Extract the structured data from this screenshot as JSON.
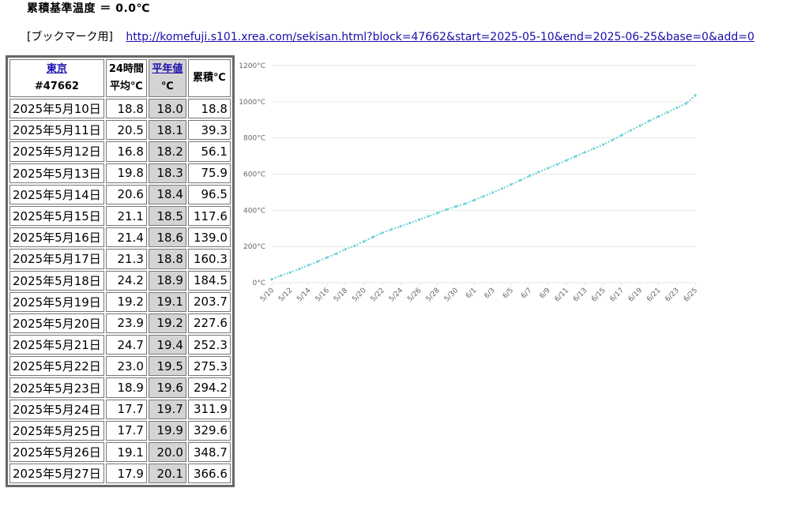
{
  "header": {
    "base_label": "累積基準温度 ＝ 0.0℃",
    "bookmark_label": "[ブックマーク用]",
    "bookmark_url": "http://komefuji.s101.xrea.com/sekisan.html?block=47662&start=2025-05-10&end=2025-06-25&base=0&add=0"
  },
  "table": {
    "station_name": "東京",
    "station_id": "#47662",
    "col_avg_line1": "24時間",
    "col_avg_line2": "平均℃",
    "col_normal_line1": "平年値",
    "col_normal_line2": "℃",
    "col_cum": "累積℃",
    "rows": [
      {
        "date": "2025年5月10日",
        "avg": "18.8",
        "normal": "18.0",
        "cum": "18.8"
      },
      {
        "date": "2025年5月11日",
        "avg": "20.5",
        "normal": "18.1",
        "cum": "39.3"
      },
      {
        "date": "2025年5月12日",
        "avg": "16.8",
        "normal": "18.2",
        "cum": "56.1"
      },
      {
        "date": "2025年5月13日",
        "avg": "19.8",
        "normal": "18.3",
        "cum": "75.9"
      },
      {
        "date": "2025年5月14日",
        "avg": "20.6",
        "normal": "18.4",
        "cum": "96.5"
      },
      {
        "date": "2025年5月15日",
        "avg": "21.1",
        "normal": "18.5",
        "cum": "117.6"
      },
      {
        "date": "2025年5月16日",
        "avg": "21.4",
        "normal": "18.6",
        "cum": "139.0"
      },
      {
        "date": "2025年5月17日",
        "avg": "21.3",
        "normal": "18.8",
        "cum": "160.3"
      },
      {
        "date": "2025年5月18日",
        "avg": "24.2",
        "normal": "18.9",
        "cum": "184.5"
      },
      {
        "date": "2025年5月19日",
        "avg": "19.2",
        "normal": "19.1",
        "cum": "203.7"
      },
      {
        "date": "2025年5月20日",
        "avg": "23.9",
        "normal": "19.2",
        "cum": "227.6"
      },
      {
        "date": "2025年5月21日",
        "avg": "24.7",
        "normal": "19.4",
        "cum": "252.3"
      },
      {
        "date": "2025年5月22日",
        "avg": "23.0",
        "normal": "19.5",
        "cum": "275.3"
      },
      {
        "date": "2025年5月23日",
        "avg": "18.9",
        "normal": "19.6",
        "cum": "294.2"
      },
      {
        "date": "2025年5月24日",
        "avg": "17.7",
        "normal": "19.7",
        "cum": "311.9"
      },
      {
        "date": "2025年5月25日",
        "avg": "17.7",
        "normal": "19.9",
        "cum": "329.6"
      },
      {
        "date": "2025年5月26日",
        "avg": "19.1",
        "normal": "20.0",
        "cum": "348.7"
      },
      {
        "date": "2025年5月27日",
        "avg": "17.9",
        "normal": "20.1",
        "cum": "366.6"
      }
    ]
  },
  "chart_data": {
    "type": "line",
    "title": "",
    "xlabel": "",
    "ylabel": "",
    "ylim": [
      0,
      1200
    ],
    "yticks": [
      "0°C",
      "200°C",
      "400°C",
      "600°C",
      "800°C",
      "1000°C",
      "1200°C"
    ],
    "ytick_values": [
      0,
      200,
      400,
      600,
      800,
      1000,
      1200
    ],
    "xtick_labels": [
      "5/10",
      "5/12",
      "5/14",
      "5/16",
      "5/18",
      "5/20",
      "5/22",
      "5/24",
      "5/26",
      "5/28",
      "5/30",
      "6/1",
      "6/3",
      "6/5",
      "6/7",
      "6/9",
      "6/11",
      "6/13",
      "6/15",
      "6/17",
      "6/19",
      "6/21",
      "6/23",
      "6/25"
    ],
    "line_color": "#6fd3d8",
    "grid": true,
    "series": [
      {
        "x": [
          "5/10",
          "5/11",
          "5/12",
          "5/13",
          "5/14",
          "5/15",
          "5/16",
          "5/17",
          "5/18",
          "5/19",
          "5/20",
          "5/21",
          "5/22",
          "5/23",
          "5/24",
          "5/25",
          "5/26",
          "5/27",
          "5/28",
          "5/29",
          "5/30",
          "5/31",
          "6/1",
          "6/2",
          "6/3",
          "6/4",
          "6/5",
          "6/6",
          "6/7",
          "6/8",
          "6/9",
          "6/10",
          "6/11",
          "6/12",
          "6/13",
          "6/14",
          "6/15",
          "6/16",
          "6/17",
          "6/18",
          "6/19",
          "6/20",
          "6/21",
          "6/22",
          "6/23",
          "6/24",
          "6/25"
        ],
        "values": [
          18.8,
          39.3,
          56.1,
          75.9,
          96.5,
          117.6,
          139.0,
          160.3,
          184.5,
          203.7,
          227.6,
          252.3,
          275.3,
          294.2,
          311.9,
          329.6,
          348.7,
          366.6,
          385,
          405,
          421,
          436,
          456,
          478,
          498,
          520,
          543,
          566,
          590,
          612,
          633,
          654,
          676,
          698,
          720,
          742,
          763,
          788,
          815,
          842,
          868,
          894,
          918,
          942,
          966,
          990,
          1035
        ]
      }
    ]
  }
}
